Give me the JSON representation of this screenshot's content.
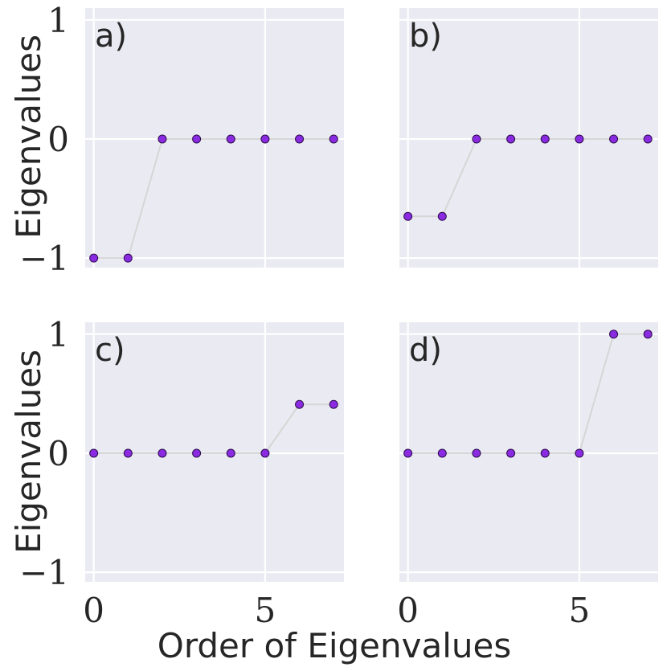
{
  "chart_data": {
    "type": "line",
    "xlabel": "Order of Eigenvalues",
    "ylabel": "Eigenvalues",
    "xlim": [
      -0.25,
      7.3
    ],
    "ylim": [
      -1.08,
      1.1
    ],
    "xticks": [
      0,
      5
    ],
    "yticks": [
      -1,
      0,
      1
    ],
    "xtick_labels": [
      "0",
      "5"
    ],
    "ytick_labels": [
      "−1",
      "0",
      "1"
    ],
    "grid": true,
    "colors": {
      "marker": "#8a2be2",
      "marker_edge": "#2a0a4a",
      "line": "#d6d6d6",
      "background": "#eaeaf2"
    },
    "panels": [
      {
        "label": "a)",
        "x": [
          0,
          1,
          2,
          3,
          4,
          5,
          6,
          7
        ],
        "y": [
          -1,
          -1,
          0,
          0,
          0,
          0,
          0,
          0
        ]
      },
      {
        "label": "b)",
        "x": [
          0,
          1,
          2,
          3,
          4,
          5,
          6,
          7
        ],
        "y": [
          -0.65,
          -0.65,
          0,
          0,
          0,
          0,
          0,
          0
        ]
      },
      {
        "label": "c)",
        "x": [
          0,
          1,
          2,
          3,
          4,
          5,
          6,
          7
        ],
        "y": [
          0,
          0,
          0,
          0,
          0,
          0,
          0.41,
          0.41
        ]
      },
      {
        "label": "d)",
        "x": [
          0,
          1,
          2,
          3,
          4,
          5,
          6,
          7
        ],
        "y": [
          0,
          0,
          0,
          0,
          0,
          0,
          1,
          1
        ]
      }
    ]
  }
}
